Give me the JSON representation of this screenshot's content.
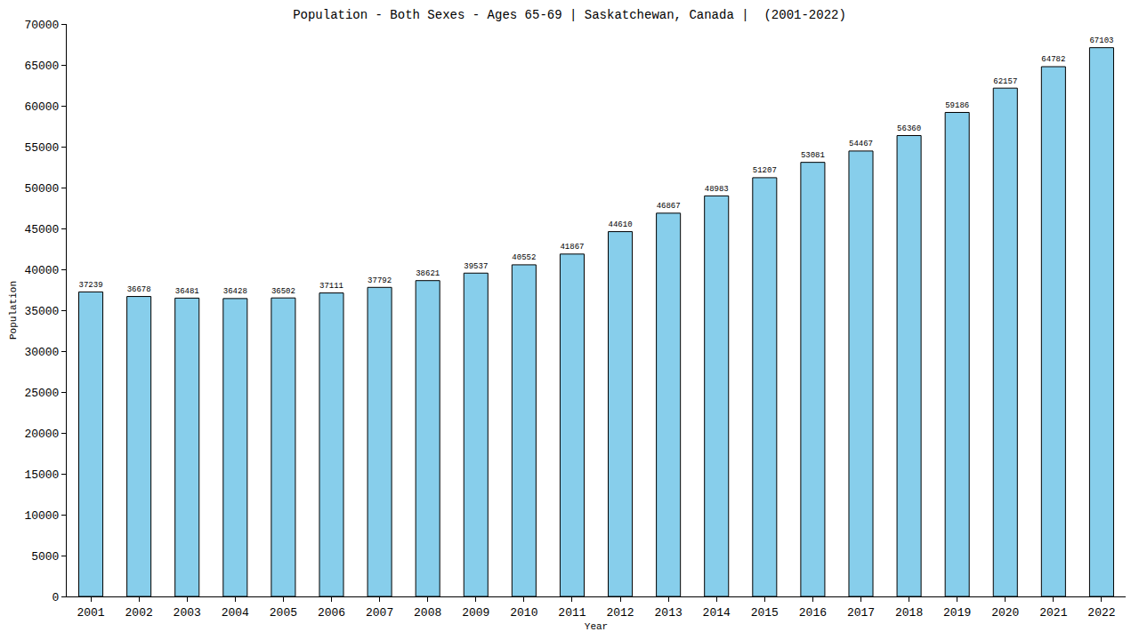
{
  "chart_data": {
    "type": "bar",
    "title": "Population - Both Sexes - Ages 65-69 | Saskatchewan, Canada |  (2001-2022)",
    "x_label": "Year",
    "y_label": "Population",
    "categories": [
      "2001",
      "2002",
      "2003",
      "2004",
      "2005",
      "2006",
      "2007",
      "2008",
      "2009",
      "2010",
      "2011",
      "2012",
      "2013",
      "2014",
      "2015",
      "2016",
      "2017",
      "2018",
      "2019",
      "2020",
      "2021",
      "2022"
    ],
    "values": [
      37239,
      36678,
      36481,
      36428,
      36502,
      37111,
      37792,
      38621,
      39537,
      40552,
      41867,
      44610,
      46867,
      48983,
      51207,
      53081,
      54467,
      56360,
      59186,
      62157,
      64782,
      67103
    ],
    "color": "#87ceeb",
    "ylim": [
      0,
      70000
    ],
    "yticks": [
      0,
      5000,
      10000,
      15000,
      20000,
      25000,
      30000,
      35000,
      40000,
      45000,
      50000,
      55000,
      60000,
      65000,
      70000
    ],
    "grid": false,
    "data_labels": true
  }
}
